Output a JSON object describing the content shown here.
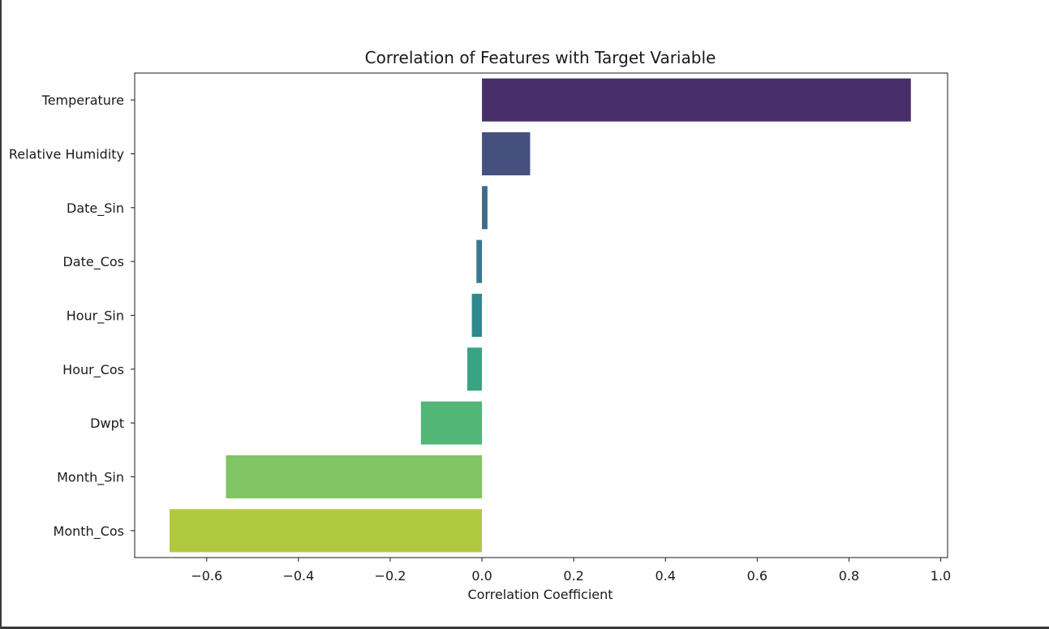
{
  "chart_data": {
    "type": "bar",
    "orientation": "horizontal",
    "title": "Correlation of Features with Target Variable",
    "xlabel": "Correlation Coefficient",
    "ylabel": "",
    "categories": [
      "Temperature",
      "Relative Humidity",
      "Date_Sin",
      "Date_Cos",
      "Hour_Sin",
      "Hour_Cos",
      "Dwpt",
      "Month_Sin",
      "Month_Cos"
    ],
    "values": [
      0.935,
      0.105,
      0.012,
      -0.012,
      -0.022,
      -0.032,
      -0.133,
      -0.558,
      -0.681
    ],
    "colors": [
      "#482f6b",
      "#46507f",
      "#3f6a8a",
      "#37788f",
      "#2f898c",
      "#39a482",
      "#52b677",
      "#80c464",
      "#b0c93f"
    ],
    "xlim": [
      -0.757,
      1.015
    ],
    "xticks": [
      -0.6,
      -0.4,
      -0.2,
      0.0,
      0.2,
      0.4,
      0.6,
      0.8,
      1.0
    ],
    "xtick_labels": [
      "−0.6",
      "−0.4",
      "−0.2",
      "0.0",
      "0.2",
      "0.4",
      "0.6",
      "0.8",
      "1.0"
    ],
    "grid": false,
    "legend": "none"
  }
}
